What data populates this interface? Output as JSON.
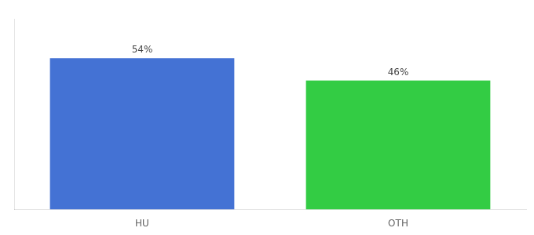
{
  "chart_data": {
    "type": "bar",
    "categories": [
      "HU",
      "OTH"
    ],
    "values": [
      54,
      46
    ],
    "value_labels": [
      "54%",
      "46%"
    ],
    "colors": [
      "#4472d4",
      "#33cc44"
    ],
    "ylim": [
      0,
      68
    ],
    "data_labels": true,
    "tick_labels": "x",
    "grid": false
  }
}
